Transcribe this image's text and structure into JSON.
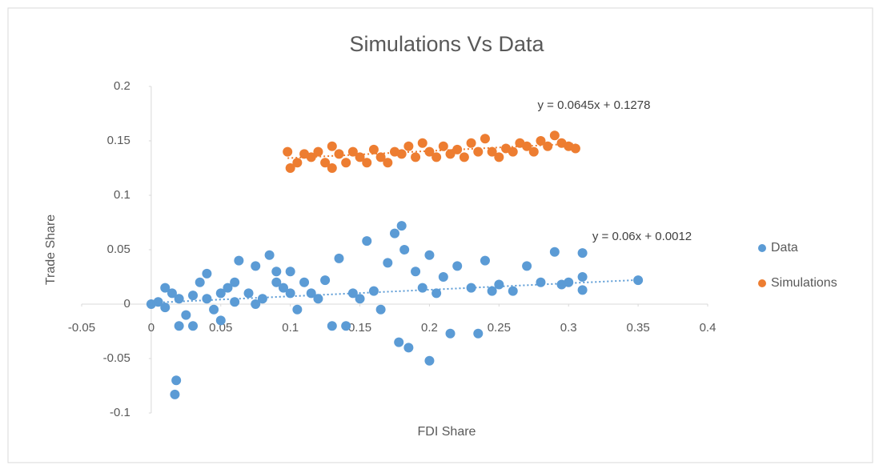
{
  "chart_data": {
    "type": "scatter",
    "title": "Simulations Vs Data",
    "x_label": "FDI Share",
    "y_label": "Trade Share",
    "xlim": [
      -0.05,
      0.4
    ],
    "xticks": [
      -0.05,
      0,
      0.05,
      0.1,
      0.15,
      0.2,
      0.25,
      0.3,
      0.35,
      0.4
    ],
    "ylim": [
      -0.1,
      0.2
    ],
    "yticks": [
      -0.1,
      -0.05,
      0,
      0.05,
      0.1,
      0.15,
      0.2
    ],
    "legend": "right",
    "series": [
      {
        "name": "Data",
        "color": "#5b9bd5",
        "x": [
          0,
          0.005,
          0.01,
          0.015,
          0.02,
          0.02,
          0.018,
          0.017,
          0.025,
          0.03,
          0.035,
          0.04,
          0.045,
          0.05,
          0.055,
          0.06,
          0.063,
          0.07,
          0.075,
          0.08,
          0.085,
          0.09,
          0.095,
          0.1,
          0.105,
          0.11,
          0.115,
          0.12,
          0.125,
          0.13,
          0.135,
          0.14,
          0.145,
          0.15,
          0.155,
          0.16,
          0.165,
          0.17,
          0.175,
          0.178,
          0.18,
          0.182,
          0.185,
          0.19,
          0.195,
          0.2,
          0.2,
          0.205,
          0.21,
          0.215,
          0.22,
          0.23,
          0.235,
          0.24,
          0.245,
          0.25,
          0.26,
          0.27,
          0.28,
          0.29,
          0.295,
          0.3,
          0.31,
          0.31,
          0.31,
          0.35,
          0.01,
          0.03,
          0.05,
          0.04,
          0.09,
          0.1,
          0.075,
          0.06
        ],
        "values": [
          0,
          0.002,
          -0.003,
          0.01,
          -0.02,
          0.005,
          -0.07,
          -0.083,
          -0.01,
          0.008,
          0.02,
          0.005,
          -0.005,
          0.01,
          0.015,
          0.002,
          0.04,
          0.01,
          0.035,
          0.005,
          0.045,
          0.02,
          0.015,
          0.03,
          -0.005,
          0.02,
          0.01,
          0.005,
          0.022,
          -0.02,
          0.042,
          -0.02,
          0.01,
          0.005,
          0.058,
          0.012,
          -0.005,
          0.038,
          0.065,
          -0.035,
          0.072,
          0.05,
          -0.04,
          0.03,
          0.015,
          0.045,
          -0.052,
          0.01,
          0.025,
          -0.027,
          0.035,
          0.015,
          -0.027,
          0.04,
          0.012,
          0.018,
          0.012,
          0.035,
          0.02,
          0.048,
          0.018,
          0.02,
          0.047,
          0.025,
          0.013,
          0.022,
          0.015,
          -0.02,
          -0.015,
          0.028,
          0.03,
          0.01,
          0,
          0.02
        ],
        "trendline": {
          "label": "y = 0.06x + 0.0012",
          "slope": 0.06,
          "intercept": 0.0012
        }
      },
      {
        "name": "Simulations",
        "color": "#ed7d31",
        "x": [
          0.098,
          0.1,
          0.105,
          0.11,
          0.115,
          0.12,
          0.125,
          0.13,
          0.13,
          0.135,
          0.14,
          0.145,
          0.15,
          0.155,
          0.16,
          0.165,
          0.17,
          0.175,
          0.18,
          0.185,
          0.19,
          0.195,
          0.2,
          0.205,
          0.21,
          0.215,
          0.22,
          0.225,
          0.23,
          0.235,
          0.24,
          0.245,
          0.25,
          0.255,
          0.26,
          0.265,
          0.27,
          0.275,
          0.28,
          0.285,
          0.29,
          0.295,
          0.3,
          0.305
        ],
        "values": [
          0.14,
          0.125,
          0.13,
          0.138,
          0.135,
          0.14,
          0.13,
          0.125,
          0.145,
          0.138,
          0.13,
          0.14,
          0.135,
          0.13,
          0.142,
          0.135,
          0.13,
          0.14,
          0.138,
          0.145,
          0.135,
          0.148,
          0.14,
          0.135,
          0.145,
          0.138,
          0.142,
          0.135,
          0.148,
          0.14,
          0.152,
          0.14,
          0.135,
          0.143,
          0.14,
          0.148,
          0.145,
          0.14,
          0.15,
          0.145,
          0.155,
          0.148,
          0.145,
          0.143
        ],
        "trendline": {
          "label": "y = 0.0645x + 0.1278",
          "slope": 0.0645,
          "intercept": 0.1278
        }
      }
    ]
  }
}
